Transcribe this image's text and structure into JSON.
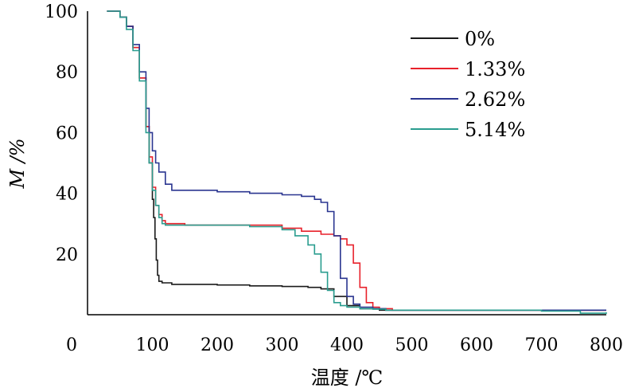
{
  "chart_data": {
    "type": "line",
    "xlabel": "温度 /℃",
    "ylabel": "M /%",
    "xlim": [
      0,
      800
    ],
    "ylim": [
      0,
      100
    ],
    "xticks": [
      "0",
      "100",
      "200",
      "300",
      "400",
      "500",
      "600",
      "700",
      "800"
    ],
    "yticks": [
      "20",
      "40",
      "60",
      "80",
      "100"
    ],
    "grid": false,
    "legend_position": "top-right",
    "series": [
      {
        "name": "0%",
        "color": "#1a1a1a",
        "x": [
          30,
          50,
          60,
          70,
          80,
          90,
          95,
          100,
          102,
          104,
          106,
          108,
          110,
          115,
          130,
          160,
          200,
          250,
          300,
          340,
          360,
          380,
          400,
          420,
          450,
          500,
          600,
          700,
          800
        ],
        "y": [
          100,
          98,
          95,
          88,
          78,
          62,
          50,
          38,
          32,
          25,
          18,
          13,
          11,
          10.5,
          10,
          10,
          9.8,
          9.5,
          9.3,
          9,
          8.5,
          6,
          3,
          2,
          1.5,
          1.5,
          1.5,
          1.5,
          1.5
        ]
      },
      {
        "name": "1.33%",
        "color": "#e8212b",
        "x": [
          30,
          50,
          60,
          70,
          80,
          90,
          95,
          100,
          105,
          110,
          115,
          120,
          150,
          200,
          250,
          300,
          330,
          360,
          380,
          390,
          400,
          410,
          420,
          430,
          440,
          450,
          470,
          500,
          600,
          700,
          800
        ],
        "y": [
          100,
          98,
          95,
          88,
          78,
          62,
          52,
          42,
          36,
          33,
          31,
          30,
          29.5,
          29.5,
          29.5,
          28.5,
          27.5,
          26.5,
          26,
          25,
          23,
          17,
          9,
          4,
          2.5,
          2,
          1.5,
          1.5,
          1.5,
          1.5,
          1.5
        ]
      },
      {
        "name": "2.62%",
        "color": "#2a3590",
        "x": [
          30,
          50,
          60,
          70,
          80,
          90,
          95,
          100,
          105,
          110,
          120,
          130,
          150,
          200,
          250,
          300,
          330,
          350,
          360,
          370,
          380,
          390,
          400,
          410,
          420,
          440,
          460,
          500,
          600,
          700,
          800
        ],
        "y": [
          100,
          98,
          95,
          89,
          80,
          68,
          60,
          54,
          50,
          47,
          43,
          41,
          41,
          40.5,
          40,
          39.5,
          39,
          38,
          37,
          34,
          26,
          12,
          6,
          3.5,
          2.5,
          2,
          1.5,
          1.5,
          1.5,
          1.5,
          1.5
        ]
      },
      {
        "name": "5.14%",
        "color": "#2a9d8f",
        "x": [
          30,
          50,
          60,
          70,
          80,
          90,
          95,
          100,
          105,
          110,
          115,
          120,
          150,
          200,
          250,
          300,
          320,
          340,
          350,
          360,
          370,
          380,
          390,
          400,
          420,
          440,
          460,
          500,
          600,
          700,
          760,
          800
        ],
        "y": [
          100,
          98,
          94,
          87,
          77,
          60,
          50,
          41,
          36,
          32,
          30,
          29.5,
          29.5,
          29.5,
          29,
          28,
          26,
          23,
          20,
          14,
          8,
          4,
          3,
          2.5,
          2,
          1.8,
          1.5,
          1.5,
          1.5,
          1.2,
          0.5,
          0.8
        ]
      }
    ]
  }
}
